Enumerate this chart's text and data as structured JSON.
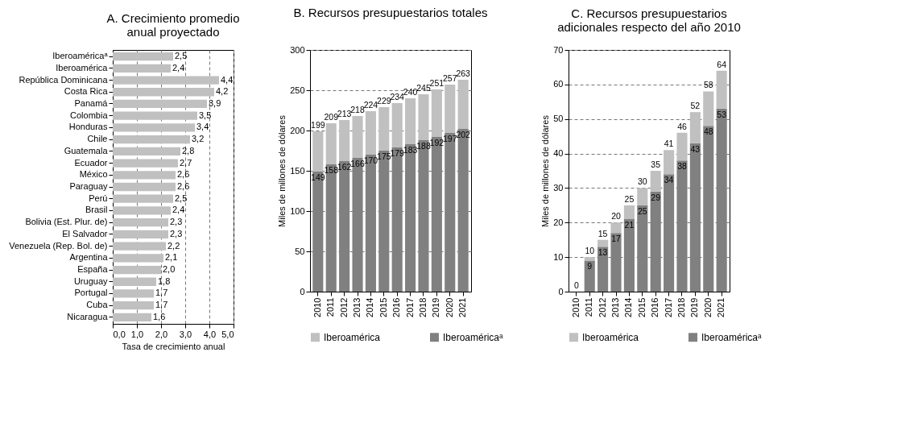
{
  "chart_data": [
    {
      "type": "bar",
      "orientation": "horizontal",
      "title": "A. Crecimiento promedio anual proyectado",
      "xlabel": "Tasa de crecimiento anual",
      "categories": [
        "Iberoaméricaᵃ",
        "Iberoamérica",
        "República Dominicana",
        "Costa Rica",
        "Panamá",
        "Colombia",
        "Honduras",
        "Chile",
        "Guatemala",
        "Ecuador",
        "México",
        "Paraguay",
        "Perú",
        "Brasil",
        "Bolivia (Est. Plur. de)",
        "El Salvador",
        "Venezuela (Rep. Bol. de)",
        "Argentina",
        "España",
        "Uruguay",
        "Portugal",
        "Cuba",
        "Nicaragua"
      ],
      "values": [
        2.5,
        2.4,
        4.4,
        4.2,
        3.9,
        3.5,
        3.4,
        3.2,
        2.8,
        2.7,
        2.6,
        2.6,
        2.5,
        2.4,
        2.3,
        2.3,
        2.2,
        2.1,
        2.0,
        1.8,
        1.7,
        1.7,
        1.6
      ],
      "value_labels": [
        "2,5",
        "2,4",
        "4,4",
        "4,2",
        "3,9",
        "3,5",
        "3,4",
        "3,2",
        "2,8",
        "2,7",
        "2,6",
        "2,6",
        "2,5",
        "2,4",
        "2,3",
        "2,3",
        "2,2",
        "2,1",
        "2,0",
        "1,8",
        "1,7",
        "1,7",
        "1,6"
      ],
      "color": "#c0c0c0",
      "xlim": [
        0,
        5
      ],
      "xticks": [
        {
          "value": 0,
          "label": "0,0"
        },
        {
          "value": 1,
          "label": "1,0"
        },
        {
          "value": 2,
          "label": "2,0"
        },
        {
          "value": 3,
          "label": "3,0"
        },
        {
          "value": 4,
          "label": "4,0"
        },
        {
          "value": 5,
          "label": "5,0"
        }
      ],
      "grid": "x"
    },
    {
      "type": "bar",
      "stacked": true,
      "title": "B. Recursos presupuestarios totales",
      "ylabel": "Miles de millones de dólares",
      "categories": [
        "2010",
        "2011",
        "2012",
        "2013",
        "2014",
        "2015",
        "2016",
        "2017",
        "2018",
        "2019",
        "2020",
        "2021"
      ],
      "series": [
        {
          "name": "Iberoaméricaᵃ",
          "color": "#808080",
          "values": [
            149,
            158,
            162,
            166,
            170,
            175,
            179,
            183,
            188,
            192,
            197,
            202
          ],
          "value_labels": [
            "149",
            "158",
            "162",
            "166",
            "170",
            "175",
            "179",
            "183",
            "188",
            "192",
            "197",
            "202"
          ]
        },
        {
          "name": "Iberoamérica",
          "color": "#c0c0c0",
          "values": [
            50,
            51,
            51,
            52,
            54,
            54,
            55,
            57,
            57,
            59,
            60,
            61
          ]
        }
      ],
      "totals": [
        "199",
        "209",
        "213",
        "218",
        "224",
        "229",
        "234",
        "240",
        "245",
        "251",
        "257",
        "263"
      ],
      "ylim": [
        0,
        300
      ],
      "yticks": [
        0,
        50,
        100,
        150,
        200,
        250,
        300
      ],
      "grid": "y",
      "legend": "bottom"
    },
    {
      "type": "bar",
      "stacked": true,
      "title": "C. Recursos presupuestarios adicionales respecto del año 2010",
      "ylabel": "Miles de millones de dólares",
      "categories": [
        "2010",
        "2011",
        "2012",
        "2013",
        "2014",
        "2015",
        "2016",
        "2017",
        "2018",
        "2019",
        "2020",
        "2021"
      ],
      "series": [
        {
          "name": "Iberoaméricaᵃ",
          "color": "#808080",
          "values": [
            0,
            9,
            13,
            17,
            21,
            25,
            29,
            34,
            38,
            43,
            48,
            53
          ],
          "value_labels": [
            null,
            "9",
            "13",
            "17",
            "21",
            "25",
            "29",
            "34",
            "38",
            "43",
            "48",
            "53"
          ]
        },
        {
          "name": "Iberoamérica",
          "color": "#c0c0c0",
          "values": [
            0,
            1,
            2,
            3,
            4,
            5,
            6,
            7,
            8,
            9,
            10,
            11
          ]
        }
      ],
      "totals": [
        "0",
        "10",
        "15",
        "20",
        "25",
        "30",
        "35",
        "41",
        "46",
        "52",
        "58",
        "64"
      ],
      "ylim": [
        0,
        70
      ],
      "yticks": [
        0,
        10,
        20,
        30,
        40,
        50,
        60,
        70
      ],
      "grid": "y",
      "legend": "bottom"
    }
  ]
}
